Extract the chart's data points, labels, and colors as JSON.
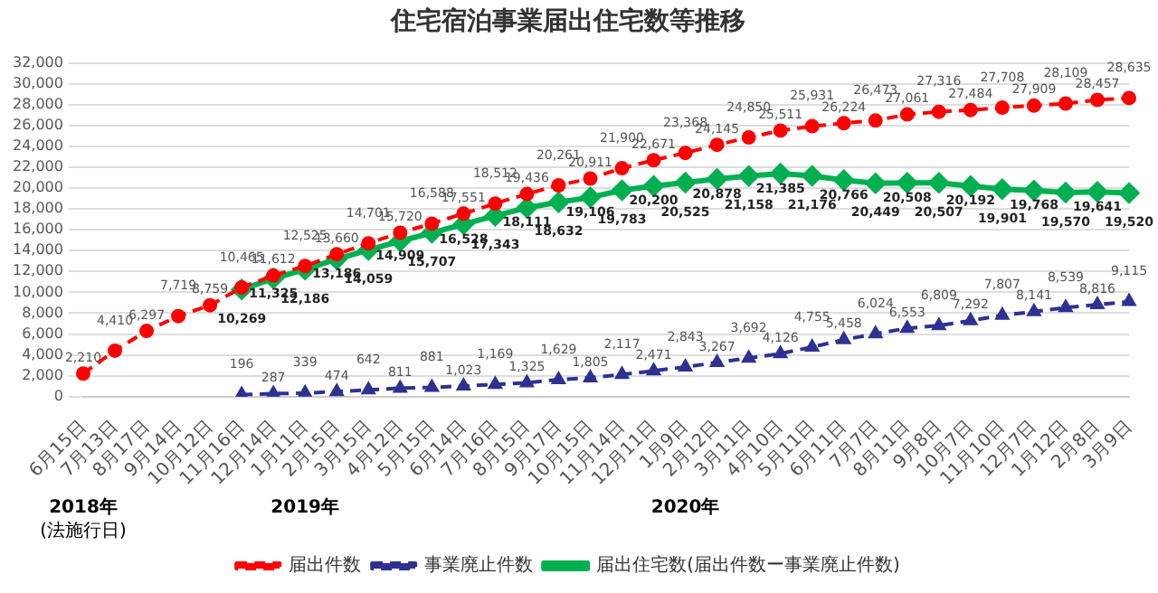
{
  "chart_data": {
    "type": "line",
    "title": "住宅宿泊事業届出住宅数等推移",
    "categories": [
      "6月15日",
      "7月13日",
      "8月17日",
      "9月14日",
      "10月12日",
      "11月16日",
      "12月14日",
      "1月11日",
      "2月15日",
      "3月15日",
      "4月12日",
      "5月15日",
      "6月14日",
      "7月16日",
      "8月15日",
      "9月17日",
      "10月15日",
      "11月14日",
      "12月11日",
      "1月9日",
      "2月12日",
      "3月11日",
      "4月10日",
      "5月11日",
      "6月11日",
      "7月7日",
      "8月11日",
      "9月8日",
      "10月7日",
      "11月10日",
      "12月7日",
      "1月12日",
      "2月8日",
      "3月9日"
    ],
    "series": [
      {
        "name": "届出件数",
        "color": "#ff0000",
        "marker": "circle",
        "line_style": "dashed",
        "values": [
          2210,
          4410,
          6297,
          7719,
          8759,
          10465,
          11612,
          12525,
          13660,
          14701,
          15720,
          16588,
          17551,
          18512,
          19436,
          20261,
          20911,
          21900,
          22671,
          23368,
          24145,
          24850,
          25511,
          25931,
          26224,
          26473,
          27061,
          27316,
          27484,
          27708,
          27909,
          28109,
          28457,
          28635
        ],
        "value_labels": [
          "2,210",
          "4,410",
          "6,297",
          "7,719",
          "8,759",
          "10,465",
          "11,612",
          "12,525",
          "13,660",
          "14,701",
          "15,720",
          "16,588",
          "17,551",
          "18,512",
          "19,436",
          "20,261",
          "20,911",
          "21,900",
          "22,671",
          "23,368",
          "24,145",
          "24,850",
          "25,511",
          "25,931",
          "26,224",
          "26,473",
          "27,061",
          "27,316",
          "27,484",
          "27,708",
          "27,909",
          "28,109",
          "28,457",
          "28,635"
        ]
      },
      {
        "name": "事業廃止件数",
        "color": "#2e3192",
        "marker": "triangle",
        "line_style": "dashed",
        "values": [
          null,
          null,
          null,
          null,
          null,
          196,
          287,
          339,
          474,
          642,
          811,
          881,
          1023,
          1169,
          1325,
          1629,
          1805,
          2117,
          2471,
          2843,
          3267,
          3692,
          4126,
          4755,
          5458,
          6024,
          6553,
          6809,
          7292,
          7807,
          8141,
          8539,
          8816,
          9115
        ],
        "value_labels": [
          null,
          null,
          null,
          null,
          null,
          "196",
          "287",
          "339",
          "474",
          "642",
          "811",
          "881",
          "1,023",
          "1,169",
          "1,325",
          "1,629",
          "1,805",
          "2,117",
          "2,471",
          "2,843",
          "3,267",
          "3,692",
          "4,126",
          "4,755",
          "5,458",
          "6,024",
          "6,553",
          "6,809",
          "7,292",
          "7,807",
          "8,141",
          "8,539",
          "8,816",
          "9,115"
        ]
      },
      {
        "name": "届出住宅数(届出件数ー事業廃止件数)",
        "color": "#00b050",
        "marker": "diamond",
        "line_style": "solid",
        "values": [
          null,
          null,
          null,
          null,
          null,
          10269,
          11325,
          12186,
          13186,
          14059,
          14909,
          15707,
          16528,
          17343,
          18111,
          18632,
          19106,
          19783,
          20200,
          20525,
          20878,
          21158,
          21385,
          21176,
          20766,
          20449,
          20508,
          20507,
          20192,
          19901,
          19768,
          19570,
          19641,
          19520
        ],
        "value_labels": [
          null,
          null,
          null,
          null,
          null,
          "10,269",
          "11,325",
          "12,186",
          "13,186",
          "14,059",
          "14,909",
          "15,707",
          "16,528",
          "17,343",
          "18,111",
          "18,632",
          "19,106",
          "19,783",
          "20,200",
          "20,525",
          "20,878",
          "21,158",
          "21,385",
          "21,176",
          "20,766",
          "20,449",
          "20,508",
          "20,507",
          "20,192",
          "19,901",
          "19,768",
          "19,570",
          "19,641",
          "19,520"
        ]
      }
    ],
    "ylim": [
      0,
      32000
    ],
    "yticks": [
      {
        "value": 0,
        "label": "0"
      },
      {
        "value": 2000,
        "label": "2,000"
      },
      {
        "value": 4000,
        "label": "4,000"
      },
      {
        "value": 6000,
        "label": "6,000"
      },
      {
        "value": 8000,
        "label": "8,000"
      },
      {
        "value": 10000,
        "label": "10,000"
      },
      {
        "value": 12000,
        "label": "12,000"
      },
      {
        "value": 14000,
        "label": "14,000"
      },
      {
        "value": 16000,
        "label": "16,000"
      },
      {
        "value": 18000,
        "label": "18,000"
      },
      {
        "value": 20000,
        "label": "20,000"
      },
      {
        "value": 22000,
        "label": "22,000"
      },
      {
        "value": 24000,
        "label": "24,000"
      },
      {
        "value": 26000,
        "label": "26,000"
      },
      {
        "value": 28000,
        "label": "28,000"
      },
      {
        "value": 30000,
        "label": "30,000"
      },
      {
        "value": 32000,
        "label": "32,000"
      }
    ],
    "grid": "y",
    "legend": "bottom",
    "annotations": [
      "2018年",
      "(法施行日)",
      "2019年",
      "2020年"
    ]
  }
}
